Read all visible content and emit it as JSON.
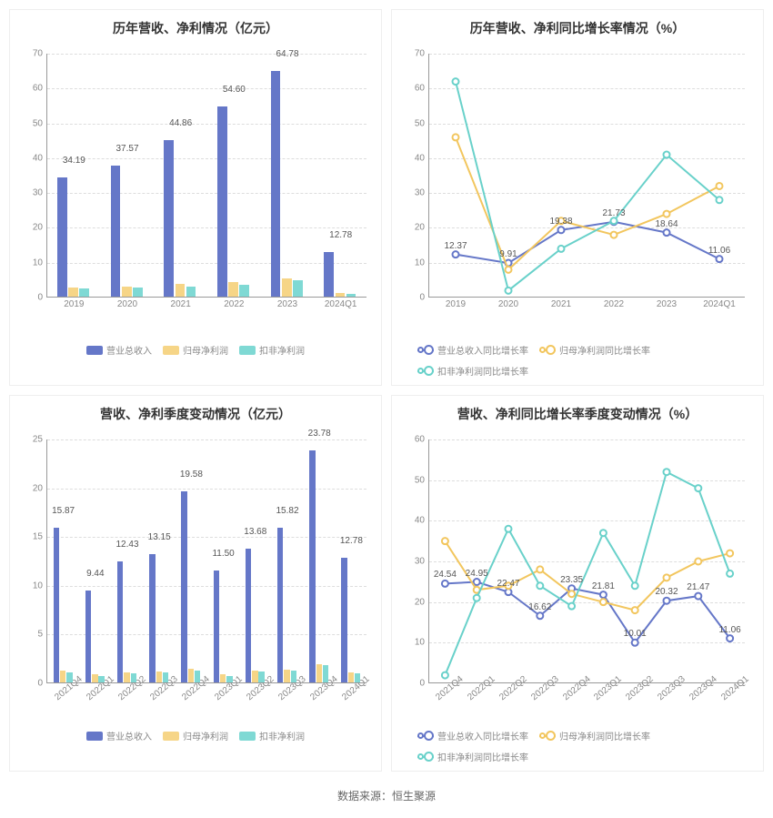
{
  "source_text": "数据来源：恒生聚源",
  "colors": {
    "bar1": "#6577c8",
    "bar2": "#f6d587",
    "bar3": "#7fd9d4",
    "line1": "#6577c8",
    "line2": "#f2c65e",
    "line3": "#69d1ca",
    "grid": "#dddddd",
    "axis": "#999999",
    "text": "#888888",
    "title": "#333333"
  },
  "chart1": {
    "title": "历年营收、净利情况（亿元）",
    "type": "bar",
    "categories": [
      "2019",
      "2020",
      "2021",
      "2022",
      "2023",
      "2024Q1"
    ],
    "ylim": [
      0,
      70
    ],
    "ytick_step": 10,
    "series": [
      {
        "name": "营业总收入",
        "color_key": "bar1",
        "values": [
          34.19,
          37.57,
          44.86,
          54.6,
          64.78,
          12.78
        ]
      },
      {
        "name": "归母净利润",
        "color_key": "bar2",
        "values": [
          2.7,
          2.9,
          3.6,
          4.2,
          5.2,
          1.0
        ]
      },
      {
        "name": "扣非净利润",
        "color_key": "bar3",
        "values": [
          2.4,
          2.6,
          2.8,
          3.4,
          4.8,
          0.9
        ]
      }
    ],
    "labels": [
      "34.19",
      "37.57",
      "44.86",
      "54.60",
      "64.78",
      "12.78"
    ],
    "legend": [
      "营业总收入",
      "归母净利润",
      "扣非净利润"
    ]
  },
  "chart2": {
    "title": "历年营收、净利同比增长率情况（%）",
    "type": "line",
    "categories": [
      "2019",
      "2020",
      "2021",
      "2022",
      "2023",
      "2024Q1"
    ],
    "ylim": [
      0,
      70
    ],
    "ytick_step": 10,
    "series": [
      {
        "name": "营业总收入同比增长率",
        "color_key": "line1",
        "values": [
          12.37,
          9.91,
          19.38,
          21.73,
          18.64,
          11.06
        ]
      },
      {
        "name": "归母净利润同比增长率",
        "color_key": "line2",
        "values": [
          46,
          8,
          22,
          18,
          24,
          32
        ]
      },
      {
        "name": "扣非净利润同比增长率",
        "color_key": "line3",
        "values": [
          62,
          2,
          14,
          22,
          41,
          28
        ]
      }
    ],
    "labels": [
      "12.37",
      "9.91",
      "19.38",
      "21.73",
      "18.64",
      "11.06"
    ],
    "legend": [
      "营业总收入同比增长率",
      "归母净利润同比增长率",
      "扣非净利润同比增长率"
    ]
  },
  "chart3": {
    "title": "营收、净利季度变动情况（亿元）",
    "type": "bar",
    "categories": [
      "2021Q4",
      "2022Q1",
      "2022Q2",
      "2022Q3",
      "2022Q4",
      "2023Q1",
      "2023Q2",
      "2023Q3",
      "2023Q4",
      "2024Q1"
    ],
    "ylim": [
      0,
      25
    ],
    "ytick_step": 5,
    "rot_labels": true,
    "series": [
      {
        "name": "营业总收入",
        "color_key": "bar1",
        "values": [
          15.87,
          9.44,
          12.43,
          13.15,
          19.58,
          11.5,
          13.68,
          15.82,
          23.78,
          12.78
        ]
      },
      {
        "name": "归母净利润",
        "color_key": "bar2",
        "values": [
          1.2,
          0.8,
          1.0,
          1.1,
          1.4,
          0.8,
          1.2,
          1.3,
          1.9,
          1.0
        ]
      },
      {
        "name": "扣非净利润",
        "color_key": "bar3",
        "values": [
          1.0,
          0.7,
          0.9,
          1.0,
          1.2,
          0.7,
          1.1,
          1.2,
          1.8,
          0.9
        ]
      }
    ],
    "labels": [
      "15.87",
      "9.44",
      "12.43",
      "13.15",
      "19.58",
      "11.50",
      "13.68",
      "15.82",
      "23.78",
      "12.78"
    ],
    "legend": [
      "营业总收入",
      "归母净利润",
      "扣非净利润"
    ]
  },
  "chart4": {
    "title": "营收、净利同比增长率季度变动情况（%）",
    "type": "line",
    "categories": [
      "2021Q4",
      "2022Q1",
      "2022Q2",
      "2022Q3",
      "2022Q4",
      "2023Q1",
      "2023Q2",
      "2023Q3",
      "2023Q4",
      "2024Q1"
    ],
    "ylim": [
      0,
      60
    ],
    "ytick_step": 10,
    "rot_labels": true,
    "series": [
      {
        "name": "营业总收入同比增长率",
        "color_key": "line1",
        "values": [
          24.54,
          24.95,
          22.47,
          16.62,
          23.35,
          21.81,
          10.01,
          20.32,
          21.47,
          11.06
        ]
      },
      {
        "name": "归母净利润同比增长率",
        "color_key": "line2",
        "values": [
          35,
          23,
          24,
          28,
          22,
          20,
          18,
          26,
          30,
          32
        ]
      },
      {
        "name": "扣非净利润同比增长率",
        "color_key": "line3",
        "values": [
          2,
          21,
          38,
          24,
          19,
          37,
          24,
          52,
          48,
          27
        ]
      }
    ],
    "labels": [
      "24.54",
      "24.95",
      "22.47",
      "16.62",
      "23.35",
      "21.81",
      "10.01",
      "20.32",
      "21.47",
      "11.06"
    ],
    "legend": [
      "营业总收入同比增长率",
      "归母净利润同比增长率",
      "扣非净利润同比增长率"
    ]
  }
}
